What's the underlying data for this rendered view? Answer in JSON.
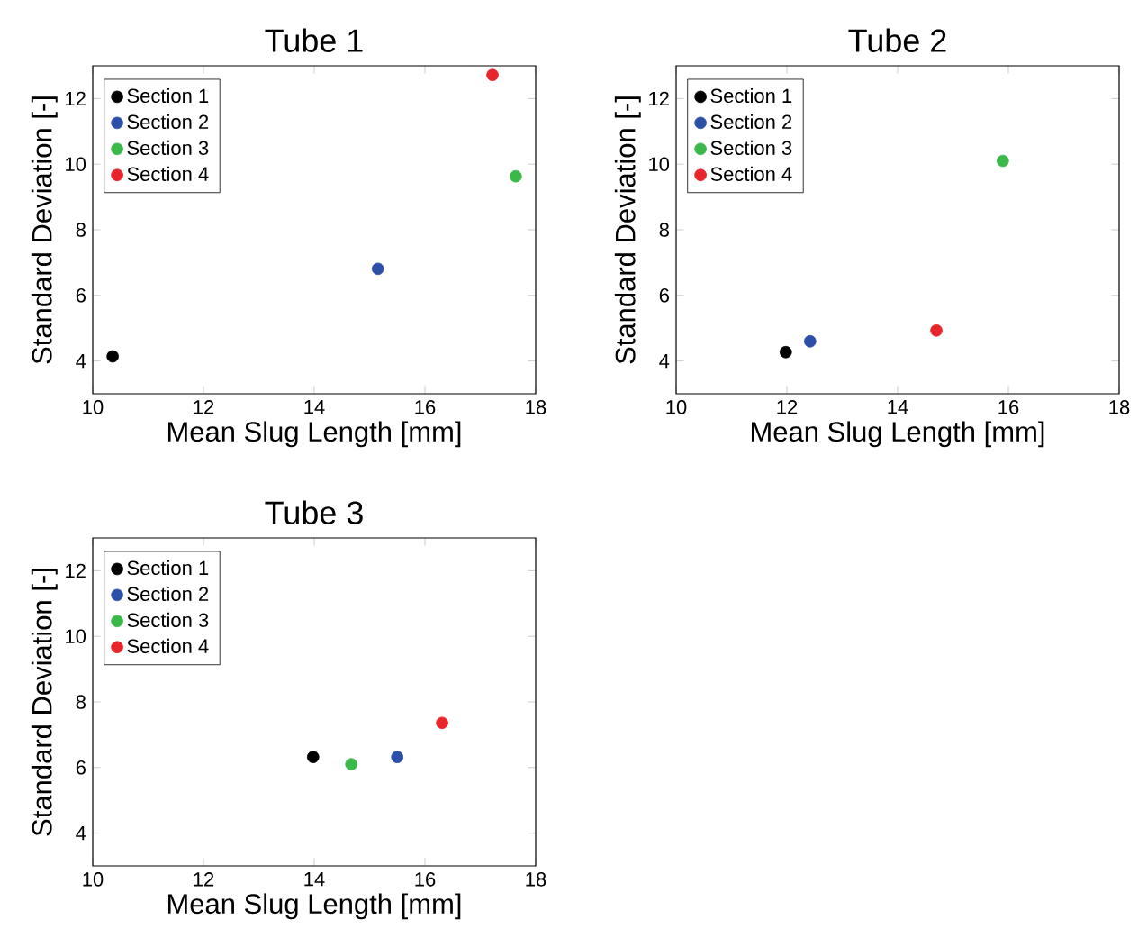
{
  "chart_data": [
    {
      "type": "scatter",
      "title": "Tube 1",
      "xlabel": "Mean Slug Length [mm]",
      "ylabel": "Standard Deviation [-]",
      "xlim": [
        10,
        18
      ],
      "ylim": [
        3,
        13
      ],
      "xticks": [
        10,
        12,
        14,
        16,
        18
      ],
      "yticks": [
        4,
        6,
        8,
        10,
        12
      ],
      "legend": "top left",
      "marker": "circle",
      "series": [
        {
          "name": "Section 1",
          "color": "#000000",
          "x": [
            10.36
          ],
          "values": [
            4.14
          ]
        },
        {
          "name": "Section 2",
          "color": "#2c4fa8",
          "x": [
            15.15
          ],
          "values": [
            6.81
          ]
        },
        {
          "name": "Section 3",
          "color": "#3cb84a",
          "x": [
            17.64
          ],
          "values": [
            9.63
          ]
        },
        {
          "name": "Section 4",
          "color": "#e8242c",
          "x": [
            17.22
          ],
          "values": [
            12.72
          ]
        }
      ]
    },
    {
      "type": "scatter",
      "title": "Tube 2",
      "xlabel": "Mean Slug Length [mm]",
      "ylabel": "Standard Deviation [-]",
      "xlim": [
        10,
        18
      ],
      "ylim": [
        3,
        13
      ],
      "xticks": [
        10,
        12,
        14,
        16,
        18
      ],
      "yticks": [
        4,
        6,
        8,
        10,
        12
      ],
      "legend": "top left",
      "marker": "circle",
      "series": [
        {
          "name": "Section 1",
          "color": "#000000",
          "x": [
            11.98
          ],
          "values": [
            4.27
          ]
        },
        {
          "name": "Section 2",
          "color": "#2c4fa8",
          "x": [
            12.42
          ],
          "values": [
            4.6
          ]
        },
        {
          "name": "Section 3",
          "color": "#3cb84a",
          "x": [
            15.9
          ],
          "values": [
            10.1
          ]
        },
        {
          "name": "Section 4",
          "color": "#e8242c",
          "x": [
            14.7
          ],
          "values": [
            4.93
          ]
        }
      ]
    },
    {
      "type": "scatter",
      "title": "Tube 3",
      "xlabel": "Mean Slug Length [mm]",
      "ylabel": "Standard Deviation [-]",
      "xlim": [
        10,
        18
      ],
      "ylim": [
        3,
        13
      ],
      "xticks": [
        10,
        12,
        14,
        16,
        18
      ],
      "yticks": [
        4,
        6,
        8,
        10,
        12
      ],
      "legend": "top left",
      "marker": "circle",
      "series": [
        {
          "name": "Section 1",
          "color": "#000000",
          "x": [
            13.98
          ],
          "values": [
            6.32
          ]
        },
        {
          "name": "Section 2",
          "color": "#2c4fa8",
          "x": [
            15.5
          ],
          "values": [
            6.32
          ]
        },
        {
          "name": "Section 3",
          "color": "#3cb84a",
          "x": [
            14.67
          ],
          "values": [
            6.1
          ]
        },
        {
          "name": "Section 4",
          "color": "#e8242c",
          "x": [
            16.31
          ],
          "values": [
            7.36
          ]
        }
      ]
    }
  ]
}
